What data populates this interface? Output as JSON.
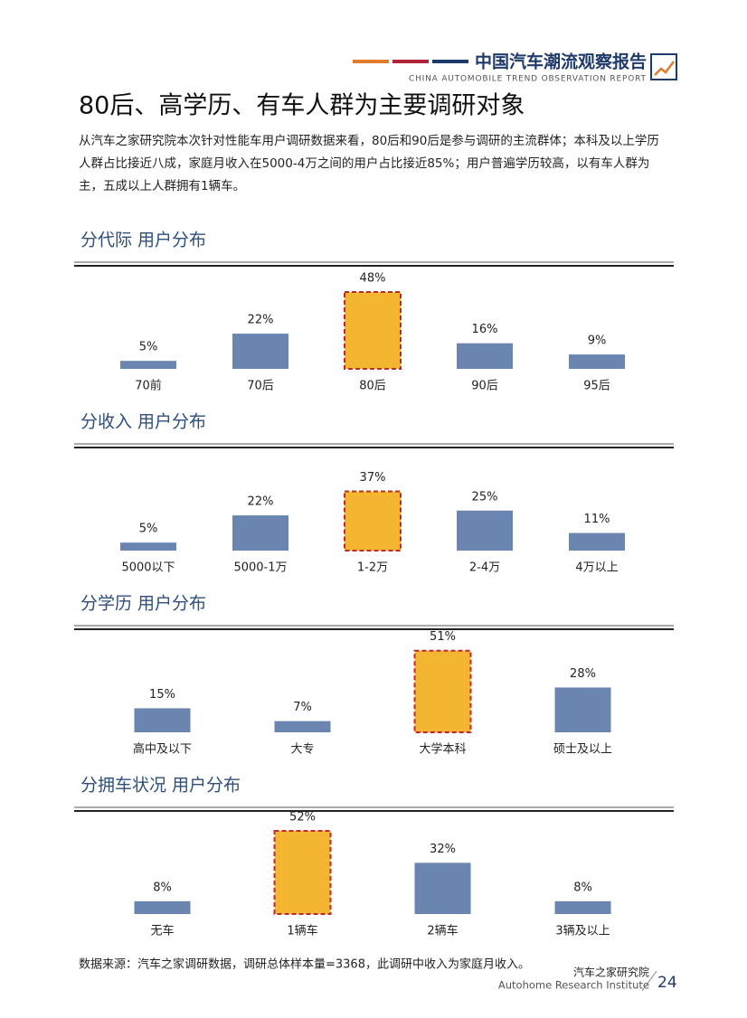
{
  "header": {
    "title": "中国汽车潮流观察报告",
    "subtitle": "CHINA AUTOMOBILE TREND OBSERVATION REPORT"
  },
  "title": "80后、高学历、有车人群为主要调研对象",
  "intro": [
    "从汽车之家研究院本次针对性能车用户调研数据来看，80后和90后是参与调研的主流群体；本科及以上学历",
    "人群占比接近八成，家庭月收入在5000-4万之间的用户占比接近85%；用户普遍学历较高，以有车人群为",
    "主，五成以上人群拥有1辆车。"
  ],
  "chart_data": [
    {
      "type": "bar",
      "title": "分代际 用户分布",
      "categories": [
        "70前",
        "70后",
        "80后",
        "90后",
        "95后"
      ],
      "values": [
        5,
        22,
        48,
        16,
        9
      ],
      "value_labels": [
        "5%",
        "22%",
        "48%",
        "16%",
        "9%"
      ],
      "colors": [
        "#6a86b0",
        "#6a86b0",
        "#f4b531",
        "#6a86b0",
        "#6a86b0"
      ],
      "borders": [
        null,
        null,
        "#c0282d",
        null,
        null
      ]
    },
    {
      "type": "bar",
      "title": "分收入 用户分布",
      "categories": [
        "5000以下",
        "5000-1万",
        "1-2万",
        "2-4万",
        "4万以上"
      ],
      "values": [
        5,
        22,
        37,
        25,
        11
      ],
      "value_labels": [
        "5%",
        "22%",
        "37%",
        "25%",
        "11%"
      ],
      "colors": [
        "#6a86b0",
        "#6a86b0",
        "#f4b531",
        "#6a86b0",
        "#6a86b0"
      ],
      "borders": [
        null,
        null,
        "#c0282d",
        null,
        null
      ]
    },
    {
      "type": "bar",
      "title": "分学历 用户分布",
      "categories": [
        "高中及以下",
        "大专",
        "大学本科",
        "硕士及以上"
      ],
      "values": [
        15,
        7,
        51,
        28
      ],
      "value_labels": [
        "15%",
        "7%",
        "51%",
        "28%"
      ],
      "colors": [
        "#6a86b0",
        "#6a86b0",
        "#f4b531",
        "#6a86b0"
      ],
      "borders": [
        null,
        null,
        "#c0282d",
        null
      ]
    },
    {
      "type": "bar",
      "title": "分拥车状况 用户分布",
      "categories": [
        "无车",
        "1辆车",
        "2辆车",
        "3辆及以上"
      ],
      "values": [
        8,
        52,
        32,
        8
      ],
      "value_labels": [
        "8%",
        "52%",
        "32%",
        "8%"
      ],
      "colors": [
        "#6a86b0",
        "#f4b531",
        "#6a86b0",
        "#6a86b0"
      ],
      "borders": [
        null,
        "#c0282d",
        null,
        null
      ]
    }
  ],
  "source": "数据来源：汽车之家调研数据，调研总体样本量=3368，此调研中收入为家庭月收入。",
  "footer": {
    "org": "汽车之家研究院",
    "org_en": "Autohome Research Institute",
    "page": "24"
  }
}
